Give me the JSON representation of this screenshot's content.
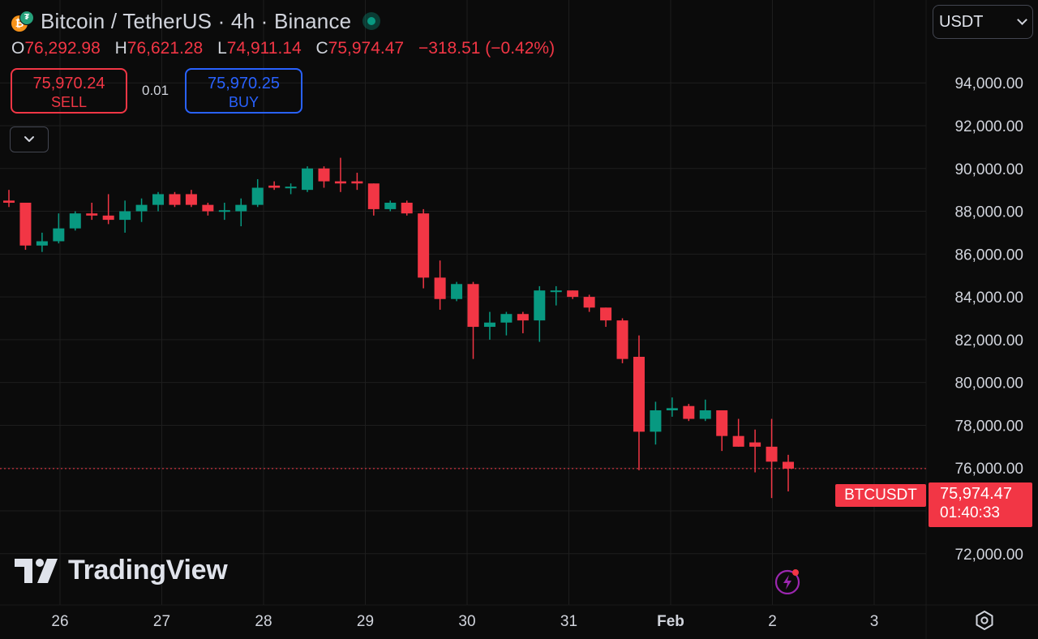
{
  "header": {
    "title": "Bitcoin / TetherUS · 4h · Binance",
    "btc_glyph": "₿",
    "usdt_glyph": "₮"
  },
  "ohlc": {
    "o_label": "O",
    "o": "76,292.98",
    "h_label": "H",
    "h": "76,621.28",
    "l_label": "L",
    "l": "74,911.14",
    "c_label": "C",
    "c": "75,974.47",
    "change": "−318.51 (−0.42%)"
  },
  "trade": {
    "sell_price": "75,970.24",
    "sell_label": "SELL",
    "spread": "0.01",
    "buy_price": "75,970.25",
    "buy_label": "BUY"
  },
  "currency": {
    "selected": "USDT"
  },
  "logo": {
    "text": "TradingView"
  },
  "last_price": {
    "symbol": "BTCUSDT",
    "price": "75,974.47",
    "countdown": "01:40:33"
  },
  "colors": {
    "up": "#089981",
    "down": "#f23645",
    "background": "#0b0b0b",
    "grid": "#1e1e1e"
  },
  "chart_data": {
    "type": "candlestick",
    "title": "Bitcoin / TetherUS · 4h · Binance",
    "interval": "4h",
    "ylim": [
      71500,
      94500
    ],
    "y_ticks": [
      72000,
      74000,
      76000,
      78000,
      80000,
      82000,
      84000,
      86000,
      88000,
      90000,
      92000,
      94000
    ],
    "y_tick_labels": [
      "72,000.00",
      "74,000.00",
      "76,000.00",
      "78,000.00",
      "80,000.00",
      "82,000.00",
      "84,000.00",
      "86,000.00",
      "88,000.00",
      "90,000.00",
      "92,000.00",
      "94,000.00"
    ],
    "x_ticks": [
      "26",
      "27",
      "28",
      "29",
      "30",
      "31",
      "Feb",
      "2",
      "3"
    ],
    "x_range": [
      -0.2,
      49.2
    ],
    "x_tick_positions": [
      3,
      9,
      15,
      21,
      27,
      33,
      39,
      45,
      51
    ],
    "last_price": 75974.47,
    "candles": [
      {
        "o": 88500,
        "h": 89000,
        "l": 88200,
        "c": 88400
      },
      {
        "o": 88400,
        "h": 88400,
        "l": 86200,
        "c": 86400
      },
      {
        "o": 86400,
        "h": 87000,
        "l": 86100,
        "c": 86600
      },
      {
        "o": 86600,
        "h": 87900,
        "l": 86500,
        "c": 87200
      },
      {
        "o": 87200,
        "h": 88000,
        "l": 87100,
        "c": 87900
      },
      {
        "o": 87900,
        "h": 88400,
        "l": 87600,
        "c": 87800
      },
      {
        "o": 87800,
        "h": 88800,
        "l": 87400,
        "c": 87600
      },
      {
        "o": 87600,
        "h": 88500,
        "l": 87000,
        "c": 88000
      },
      {
        "o": 88000,
        "h": 88600,
        "l": 87500,
        "c": 88300
      },
      {
        "o": 88300,
        "h": 88900,
        "l": 88000,
        "c": 88800
      },
      {
        "o": 88800,
        "h": 88900,
        "l": 88200,
        "c": 88300
      },
      {
        "o": 88800,
        "h": 89000,
        "l": 88200,
        "c": 88300
      },
      {
        "o": 88300,
        "h": 88400,
        "l": 87800,
        "c": 88000
      },
      {
        "o": 88000,
        "h": 88400,
        "l": 87600,
        "c": 88050
      },
      {
        "o": 88000,
        "h": 88600,
        "l": 87300,
        "c": 88300
      },
      {
        "o": 88300,
        "h": 89500,
        "l": 88200,
        "c": 89100
      },
      {
        "o": 89200,
        "h": 89400,
        "l": 89000,
        "c": 89100
      },
      {
        "o": 89100,
        "h": 89300,
        "l": 88800,
        "c": 89150
      },
      {
        "o": 89000,
        "h": 90100,
        "l": 88900,
        "c": 90000
      },
      {
        "o": 90000,
        "h": 90100,
        "l": 89100,
        "c": 89400
      },
      {
        "o": 89400,
        "h": 90500,
        "l": 88900,
        "c": 89300
      },
      {
        "o": 89400,
        "h": 89800,
        "l": 89000,
        "c": 89300
      },
      {
        "o": 89300,
        "h": 89300,
        "l": 87800,
        "c": 88100
      },
      {
        "o": 88100,
        "h": 88500,
        "l": 88000,
        "c": 88400
      },
      {
        "o": 88400,
        "h": 88500,
        "l": 87800,
        "c": 87900
      },
      {
        "o": 87900,
        "h": 88100,
        "l": 84400,
        "c": 84900
      },
      {
        "o": 84900,
        "h": 85700,
        "l": 83400,
        "c": 83900
      },
      {
        "o": 83900,
        "h": 84700,
        "l": 83800,
        "c": 84600
      },
      {
        "o": 84600,
        "h": 84700,
        "l": 81100,
        "c": 82600
      },
      {
        "o": 82600,
        "h": 83300,
        "l": 82000,
        "c": 82800
      },
      {
        "o": 82800,
        "h": 83300,
        "l": 82200,
        "c": 83200
      },
      {
        "o": 83200,
        "h": 83300,
        "l": 82300,
        "c": 82900
      },
      {
        "o": 82900,
        "h": 84500,
        "l": 81900,
        "c": 84300
      },
      {
        "o": 84300,
        "h": 84500,
        "l": 83600,
        "c": 84300
      },
      {
        "o": 84300,
        "h": 84300,
        "l": 83900,
        "c": 84000
      },
      {
        "o": 84000,
        "h": 84100,
        "l": 83300,
        "c": 83500
      },
      {
        "o": 83500,
        "h": 83500,
        "l": 82600,
        "c": 82900
      },
      {
        "o": 82900,
        "h": 83000,
        "l": 80900,
        "c": 81100
      },
      {
        "o": 81200,
        "h": 82200,
        "l": 75900,
        "c": 77700
      },
      {
        "o": 77700,
        "h": 79100,
        "l": 77100,
        "c": 78700
      },
      {
        "o": 78700,
        "h": 79300,
        "l": 78400,
        "c": 78800
      },
      {
        "o": 78900,
        "h": 79000,
        "l": 78200,
        "c": 78300
      },
      {
        "o": 78300,
        "h": 79200,
        "l": 78200,
        "c": 78700
      },
      {
        "o": 78700,
        "h": 78700,
        "l": 76800,
        "c": 77500
      },
      {
        "o": 77500,
        "h": 78300,
        "l": 77000,
        "c": 77000
      },
      {
        "o": 77200,
        "h": 77800,
        "l": 75800,
        "c": 77000
      },
      {
        "o": 77000,
        "h": 78300,
        "l": 74600,
        "c": 76300
      },
      {
        "o": 76293,
        "h": 76621,
        "l": 74911,
        "c": 75974
      }
    ]
  }
}
